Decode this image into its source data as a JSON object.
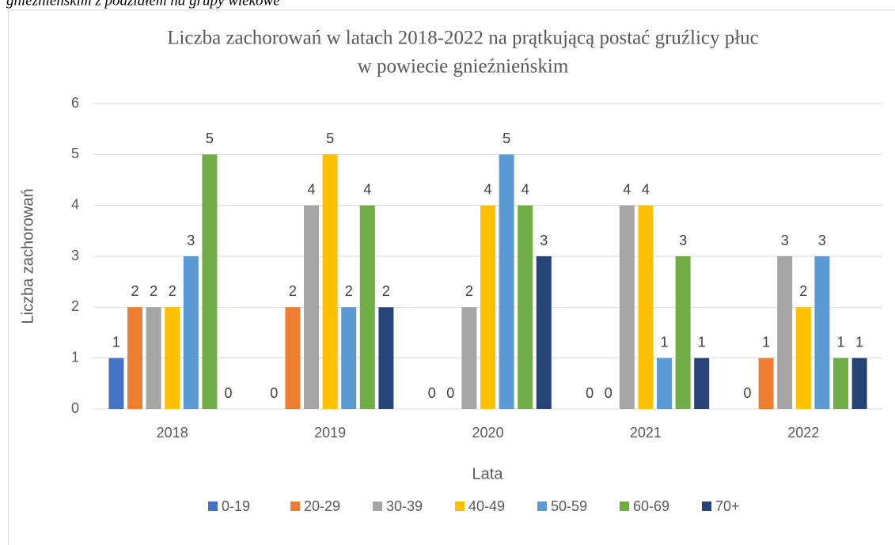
{
  "caption": "gnieźnieńskim z podziałem na grupy wiekowe",
  "chart_data": {
    "type": "bar",
    "title": [
      "Liczba zachorowań w latach 2018-2022 na prątkującą postać gruźlicy płuc",
      "w powiecie gnieźnieńskim"
    ],
    "x_label": "Lata",
    "y_label": "Liczba zachorowań",
    "categories": [
      "2018",
      "2019",
      "2020",
      "2021",
      "2022"
    ],
    "series": [
      {
        "name": "0-19",
        "color": "#4472c4",
        "values": [
          1,
          0,
          0,
          0,
          0
        ]
      },
      {
        "name": "20-29",
        "color": "#ed7d31",
        "values": [
          2,
          2,
          0,
          0,
          1
        ]
      },
      {
        "name": "30-39",
        "color": "#a5a5a5",
        "values": [
          2,
          4,
          2,
          4,
          3
        ]
      },
      {
        "name": "40-49",
        "color": "#ffc000",
        "values": [
          2,
          5,
          4,
          4,
          2
        ]
      },
      {
        "name": "50-59",
        "color": "#5b9bd5",
        "values": [
          3,
          2,
          5,
          1,
          3
        ]
      },
      {
        "name": "60-69",
        "color": "#70ad47",
        "values": [
          5,
          4,
          4,
          3,
          1
        ]
      },
      {
        "name": "70+",
        "color": "#264478",
        "values": [
          0,
          2,
          3,
          1,
          1
        ]
      }
    ],
    "ylim": [
      0,
      6
    ],
    "yticks": [
      0,
      1,
      2,
      3,
      4,
      5,
      6
    ],
    "grid": true,
    "legend": "bottom"
  }
}
